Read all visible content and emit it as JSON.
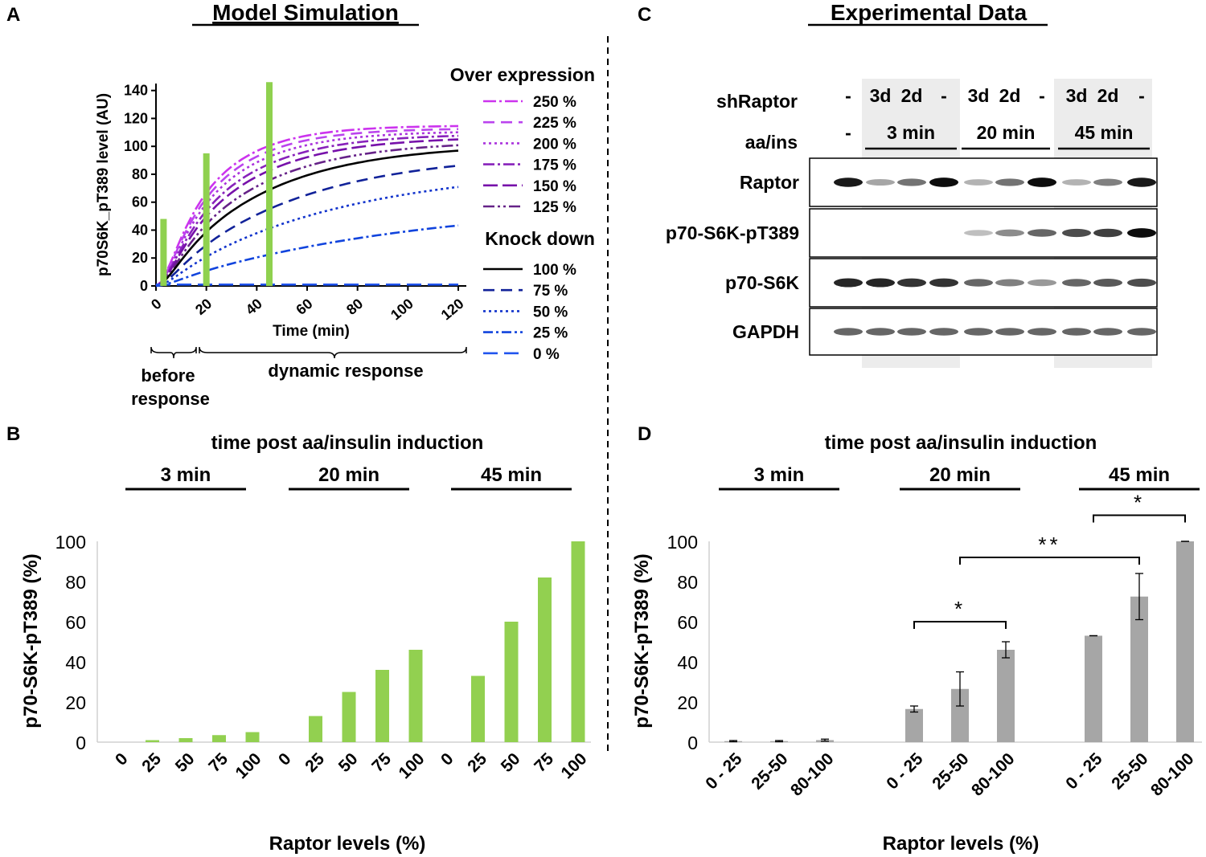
{
  "panel_labels": {
    "a": "A",
    "b": "B",
    "c": "C",
    "d": "D"
  },
  "headers": {
    "left": "Model Simulation",
    "right": "Experimental Data"
  },
  "chart_data": [
    {
      "panel": "A",
      "type": "line",
      "ylabel": "p70S6K_pT389 level (AU)",
      "xlabel": "Time (min)",
      "xlim": [
        0,
        120
      ],
      "ylim": [
        0,
        145
      ],
      "xticks": [
        "0",
        "20",
        "40",
        "60",
        "80",
        "100",
        "120"
      ],
      "yticks": [
        "0",
        "20",
        "40",
        "60",
        "80",
        "100",
        "120",
        "140"
      ],
      "legend_over_title": "Over expression",
      "legend_knock_title": "Knock down",
      "series": [
        {
          "name": "250 %",
          "group": "over",
          "plateau": 115,
          "k": 0.046,
          "color": "#cc33ee",
          "dash": "16,4,3,4"
        },
        {
          "name": "225 %",
          "group": "over",
          "plateau": 113,
          "k": 0.043,
          "color": "#bb44ee",
          "dash": "14,8"
        },
        {
          "name": "200 %",
          "group": "over",
          "plateau": 111,
          "k": 0.04,
          "color": "#aa33dd",
          "dash": "3,4"
        },
        {
          "name": "175 %",
          "group": "over",
          "plateau": 109,
          "k": 0.036,
          "color": "#8822bb",
          "dash": "14,4,3,4"
        },
        {
          "name": "150 %",
          "group": "over",
          "plateau": 107,
          "k": 0.033,
          "color": "#7711aa",
          "dash": "18,6"
        },
        {
          "name": "125 %",
          "group": "over",
          "plateau": 104,
          "k": 0.029,
          "color": "#662288",
          "dash": "14,4,3,4,3,4"
        },
        {
          "name": "100 %",
          "group": "knock",
          "plateau": 102,
          "k": 0.025,
          "color": "#000000",
          "dash": ""
        },
        {
          "name": "75 %",
          "group": "knock",
          "plateau": 96,
          "k": 0.019,
          "color": "#112299",
          "dash": "14,8"
        },
        {
          "name": "50 %",
          "group": "knock",
          "plateau": 86,
          "k": 0.0145,
          "color": "#1133cc",
          "dash": "3,4"
        },
        {
          "name": "25 %",
          "group": "knock",
          "plateau": 62,
          "k": 0.01,
          "color": "#1144dd",
          "dash": "12,4,3,4"
        },
        {
          "name": "0 %",
          "group": "knock",
          "plateau": 1,
          "k": 0.5,
          "color": "#2255ee",
          "dash": "18,8"
        }
      ],
      "time_markers": [
        {
          "x": 3,
          "y": 48
        },
        {
          "x": 20,
          "y": 95
        },
        {
          "x": 45,
          "y": 146
        }
      ],
      "marker_color": "#8fd14f",
      "brackets": [
        {
          "label": "before response"
        },
        {
          "label": "dynamic response"
        }
      ]
    },
    {
      "panel": "B",
      "type": "bar",
      "title": "time post aa/insulin induction",
      "xlabel": "Raptor levels (%)",
      "ylabel": "p70-S6K-pT389 (%)",
      "ylim": [
        0,
        100
      ],
      "yticks": [
        "0",
        "20",
        "40",
        "60",
        "80",
        "100"
      ],
      "bar_color": "#92d050",
      "groups": [
        {
          "label": "3 min",
          "categories": [
            "0",
            "25",
            "50",
            "75",
            "100"
          ],
          "values": [
            0,
            1,
            2,
            3.5,
            5
          ]
        },
        {
          "label": "20 min",
          "categories": [
            "0",
            "25",
            "50",
            "75",
            "100"
          ],
          "values": [
            0,
            13,
            25,
            36,
            46
          ]
        },
        {
          "label": "45 min",
          "categories": [
            "0",
            "25",
            "50",
            "75",
            "100"
          ],
          "values": [
            0,
            33,
            60,
            82,
            100
          ]
        }
      ]
    },
    {
      "panel": "C",
      "type": "table",
      "row_labels": {
        "shraptor": "shRaptor",
        "aains": "aa/ins"
      },
      "shraptor": [
        "-",
        "3d",
        "2d",
        "-",
        "3d",
        "2d",
        "-",
        "3d",
        "2d",
        "-"
      ],
      "aains_first": "-",
      "time_groups": [
        "3 min",
        "20 min",
        "45 min"
      ],
      "blots": [
        {
          "label": "Raptor",
          "intensities": [
            0.9,
            0.35,
            0.55,
            0.95,
            0.3,
            0.55,
            0.95,
            0.3,
            0.5,
            0.9
          ]
        },
        {
          "label": "p70-S6K-pT389",
          "intensities": [
            0,
            0,
            0,
            0,
            0.25,
            0.45,
            0.6,
            0.7,
            0.75,
            0.95
          ]
        },
        {
          "label": "p70-S6K",
          "intensities": [
            0.85,
            0.85,
            0.8,
            0.8,
            0.6,
            0.5,
            0.4,
            0.6,
            0.65,
            0.7
          ]
        },
        {
          "label": "GAPDH",
          "intensities": [
            0.6,
            0.6,
            0.6,
            0.6,
            0.6,
            0.6,
            0.6,
            0.6,
            0.6,
            0.6
          ]
        }
      ]
    },
    {
      "panel": "D",
      "type": "bar",
      "title": "time post aa/insulin induction",
      "xlabel": "Raptor levels (%)",
      "ylabel": "p70-S6K-pT389 (%)",
      "ylim": [
        0,
        100
      ],
      "yticks": [
        "0",
        "20",
        "40",
        "60",
        "80",
        "100"
      ],
      "bar_color": "#a6a6a6",
      "groups": [
        {
          "label": "3 min",
          "categories": [
            "0 - 25",
            "25-50",
            "80-100"
          ],
          "values": [
            0.5,
            0.5,
            1
          ],
          "errors": [
            0.3,
            0.3,
            0.5
          ]
        },
        {
          "label": "20 min",
          "categories": [
            "0 - 25",
            "25-50",
            "80-100"
          ],
          "values": [
            16.5,
            26.5,
            46
          ],
          "errors": [
            1.5,
            8.5,
            4
          ]
        },
        {
          "label": "45 min",
          "categories": [
            "0 - 25",
            "25-50",
            "80-100"
          ],
          "values": [
            53,
            72.5,
            100
          ],
          "errors": [
            0,
            11.5,
            0
          ]
        }
      ],
      "significance": [
        {
          "text": "*",
          "from_group": 1,
          "from_bar": 0,
          "to_group": 1,
          "to_bar": 2,
          "y": 60
        },
        {
          "text": "**",
          "from_group": 1,
          "from_bar": 1,
          "to_group": 2,
          "to_bar": 1,
          "y": 92
        },
        {
          "text": "*",
          "from_group": 2,
          "from_bar": 0,
          "to_group": 2,
          "to_bar": 2,
          "y": 113
        }
      ]
    }
  ]
}
